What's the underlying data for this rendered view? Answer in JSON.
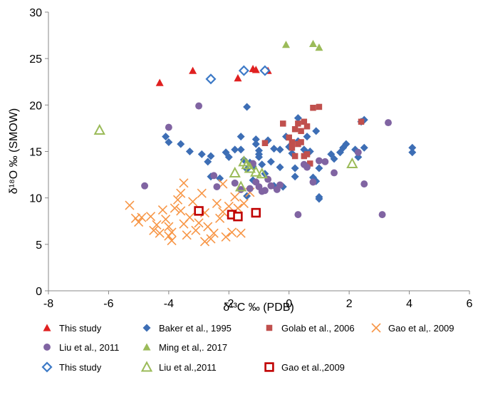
{
  "chart_data": {
    "type": "scatter",
    "xlabel": "δ¹³C ‰ (PDB)",
    "ylabel": "δ¹⁸O ‰ (SMOW)",
    "xlim": [
      -8,
      6
    ],
    "ylim": [
      0,
      30
    ],
    "xticks": [
      "-8",
      "-6",
      "-4",
      "-2",
      "0",
      "2",
      "4",
      "6"
    ],
    "yticks": [
      "0",
      "5",
      "10",
      "15",
      "20",
      "25",
      "30"
    ],
    "grid": false,
    "legend_position": "bottom",
    "series": [
      {
        "name": "This study",
        "marker": "triangle-filled",
        "color": "#e02020",
        "points": [
          [
            -4.3,
            22.4
          ],
          [
            -3.2,
            23.7
          ],
          [
            -1.7,
            22.9
          ],
          [
            -1.2,
            23.9
          ],
          [
            -1.1,
            23.8
          ],
          [
            -0.7,
            23.7
          ]
        ]
      },
      {
        "name": "Baker et al., 1995",
        "marker": "diamond-filled",
        "color": "#3d6eb5",
        "points": [
          [
            -4.1,
            16.6
          ],
          [
            -4.0,
            16.0
          ],
          [
            -3.6,
            15.8
          ],
          [
            -3.3,
            15.0
          ],
          [
            -2.9,
            14.7
          ],
          [
            -2.7,
            13.9
          ],
          [
            -2.6,
            14.5
          ],
          [
            -2.6,
            12.3
          ],
          [
            -2.3,
            12.1
          ],
          [
            -2.1,
            14.9
          ],
          [
            -2.0,
            14.4
          ],
          [
            -1.8,
            15.2
          ],
          [
            -1.6,
            16.6
          ],
          [
            -1.6,
            15.2
          ],
          [
            -1.5,
            14.1
          ],
          [
            -1.4,
            13.1
          ],
          [
            -1.4,
            10.2
          ],
          [
            -1.4,
            19.8
          ],
          [
            -1.3,
            13.8
          ],
          [
            -1.2,
            13.4
          ],
          [
            -1.2,
            11.9
          ],
          [
            -1.1,
            16.3
          ],
          [
            -1.1,
            15.8
          ],
          [
            -1.0,
            15.1
          ],
          [
            -1.0,
            14.7
          ],
          [
            -1.0,
            14.4
          ],
          [
            -0.9,
            13.6
          ],
          [
            -0.8,
            12.6
          ],
          [
            -0.7,
            16.2
          ],
          [
            -0.6,
            13.9
          ],
          [
            -0.5,
            15.3
          ],
          [
            -0.5,
            11.3
          ],
          [
            -0.3,
            15.2
          ],
          [
            -0.3,
            13.3
          ],
          [
            -0.2,
            11.2
          ],
          [
            -0.1,
            16.6
          ],
          [
            0.0,
            15.5
          ],
          [
            0.1,
            14.8
          ],
          [
            0.2,
            13.2
          ],
          [
            0.2,
            12.3
          ],
          [
            0.3,
            18.6
          ],
          [
            0.3,
            16.1
          ],
          [
            0.5,
            15.2
          ],
          [
            0.6,
            14.8
          ],
          [
            0.6,
            16.6
          ],
          [
            0.7,
            15.0
          ],
          [
            0.8,
            12.2
          ],
          [
            0.9,
            11.8
          ],
          [
            1.0,
            10.1
          ],
          [
            1.0,
            13.2
          ],
          [
            0.9,
            17.2
          ],
          [
            1.0,
            9.9
          ],
          [
            1.4,
            14.7
          ],
          [
            1.5,
            14.2
          ],
          [
            1.7,
            14.9
          ],
          [
            1.8,
            15.4
          ],
          [
            1.9,
            15.8
          ],
          [
            2.2,
            15.2
          ],
          [
            2.3,
            14.4
          ],
          [
            2.4,
            18.2
          ],
          [
            2.5,
            18.4
          ],
          [
            2.5,
            15.4
          ],
          [
            4.1,
            15.4
          ],
          [
            4.1,
            14.9
          ]
        ]
      },
      {
        "name": "Golab et al., 2006",
        "marker": "square-filled",
        "color": "#c0504d",
        "points": [
          [
            -0.8,
            15.9
          ],
          [
            -0.2,
            18.0
          ],
          [
            0.0,
            16.5
          ],
          [
            0.1,
            16.0
          ],
          [
            0.1,
            15.4
          ],
          [
            0.2,
            17.4
          ],
          [
            0.2,
            14.5
          ],
          [
            0.3,
            18.0
          ],
          [
            0.3,
            15.8
          ],
          [
            0.4,
            17.2
          ],
          [
            0.4,
            16.0
          ],
          [
            0.5,
            18.2
          ],
          [
            0.5,
            14.5
          ],
          [
            0.6,
            17.7
          ],
          [
            0.6,
            14.7
          ],
          [
            0.7,
            13.7
          ],
          [
            0.8,
            19.7
          ],
          [
            1.0,
            19.8
          ],
          [
            2.4,
            18.2
          ]
        ]
      },
      {
        "name": "Gao et al,. 2009",
        "marker": "x",
        "color": "#f79646",
        "points": [
          [
            -5.3,
            9.2
          ],
          [
            -5.1,
            7.8
          ],
          [
            -5.0,
            7.4
          ],
          [
            -4.9,
            7.9
          ],
          [
            -4.6,
            8.0
          ],
          [
            -4.5,
            6.5
          ],
          [
            -4.4,
            7.1
          ],
          [
            -4.3,
            6.2
          ],
          [
            -4.2,
            8.7
          ],
          [
            -4.1,
            7.7
          ],
          [
            -4.0,
            5.9
          ],
          [
            -4.0,
            6.9
          ],
          [
            -3.9,
            5.4
          ],
          [
            -3.9,
            6.3
          ],
          [
            -3.8,
            8.9
          ],
          [
            -3.7,
            9.8
          ],
          [
            -3.6,
            8.6
          ],
          [
            -3.6,
            10.5
          ],
          [
            -3.5,
            11.6
          ],
          [
            -3.5,
            7.2
          ],
          [
            -3.4,
            6.0
          ],
          [
            -3.3,
            7.9
          ],
          [
            -3.2,
            9.6
          ],
          [
            -3.1,
            6.5
          ],
          [
            -3.0,
            7.3
          ],
          [
            -2.9,
            10.5
          ],
          [
            -2.8,
            5.3
          ],
          [
            -2.8,
            8.4
          ],
          [
            -2.7,
            6.9
          ],
          [
            -2.6,
            5.6
          ],
          [
            -2.5,
            6.2
          ],
          [
            -2.4,
            9.4
          ],
          [
            -2.3,
            7.8
          ],
          [
            -2.2,
            11.5
          ],
          [
            -2.2,
            8.5
          ],
          [
            -2.1,
            5.8
          ],
          [
            -2.0,
            9.1
          ],
          [
            -1.9,
            6.3
          ],
          [
            -1.8,
            10.1
          ],
          [
            -1.7,
            8.9
          ],
          [
            -1.6,
            6.2
          ],
          [
            -1.5,
            9.4
          ],
          [
            -1.3,
            10.6
          ]
        ]
      },
      {
        "name": "Liu et al., 2011",
        "marker": "circle-filled",
        "color": "#8064a2",
        "points": [
          [
            -4.8,
            11.3
          ],
          [
            -4.0,
            17.6
          ],
          [
            -3.0,
            19.9
          ],
          [
            -2.5,
            12.4
          ],
          [
            -2.4,
            11.2
          ],
          [
            -1.8,
            11.6
          ],
          [
            -1.6,
            10.9
          ],
          [
            -1.3,
            11.0
          ],
          [
            -1.2,
            13.7
          ],
          [
            -1.1,
            11.7
          ],
          [
            -1.0,
            11.2
          ],
          [
            -0.9,
            10.7
          ],
          [
            -0.8,
            10.8
          ],
          [
            -0.7,
            12.0
          ],
          [
            -0.6,
            11.3
          ],
          [
            -0.4,
            10.9
          ],
          [
            -0.3,
            11.4
          ],
          [
            0.3,
            8.2
          ],
          [
            0.5,
            13.6
          ],
          [
            0.6,
            13.3
          ],
          [
            0.8,
            11.7
          ],
          [
            1.0,
            14.0
          ],
          [
            1.2,
            13.9
          ],
          [
            1.5,
            12.7
          ],
          [
            2.3,
            14.9
          ],
          [
            2.5,
            11.5
          ],
          [
            3.1,
            8.2
          ],
          [
            3.3,
            18.1
          ]
        ]
      },
      {
        "name": "Ming et al,. 2017",
        "marker": "triangle-filled",
        "color": "#9bbb59",
        "points": [
          [
            -0.1,
            26.5
          ],
          [
            0.8,
            26.6
          ],
          [
            1.0,
            26.2
          ]
        ]
      },
      {
        "name": "This study",
        "marker": "diamond-open",
        "color": "#3d7ac7",
        "points": [
          [
            -2.6,
            22.8
          ],
          [
            -1.5,
            23.7
          ],
          [
            -0.8,
            23.7
          ]
        ]
      },
      {
        "name": "Liu et al.,2011",
        "marker": "triangle-open",
        "color": "#9bbb59",
        "points": [
          [
            -6.3,
            17.3
          ],
          [
            -1.8,
            12.7
          ],
          [
            -1.6,
            11.2
          ],
          [
            -1.5,
            13.9
          ],
          [
            -1.4,
            13.6
          ],
          [
            -1.3,
            13.2
          ],
          [
            -1.1,
            12.8
          ],
          [
            -0.9,
            12.6
          ],
          [
            2.1,
            13.7
          ]
        ]
      },
      {
        "name": "Gao et al.,2009",
        "marker": "square-open",
        "color": "#c00000",
        "points": [
          [
            -3.0,
            8.6
          ],
          [
            -1.9,
            8.2
          ],
          [
            -1.7,
            8.0
          ],
          [
            -1.1,
            8.4
          ]
        ]
      }
    ]
  }
}
